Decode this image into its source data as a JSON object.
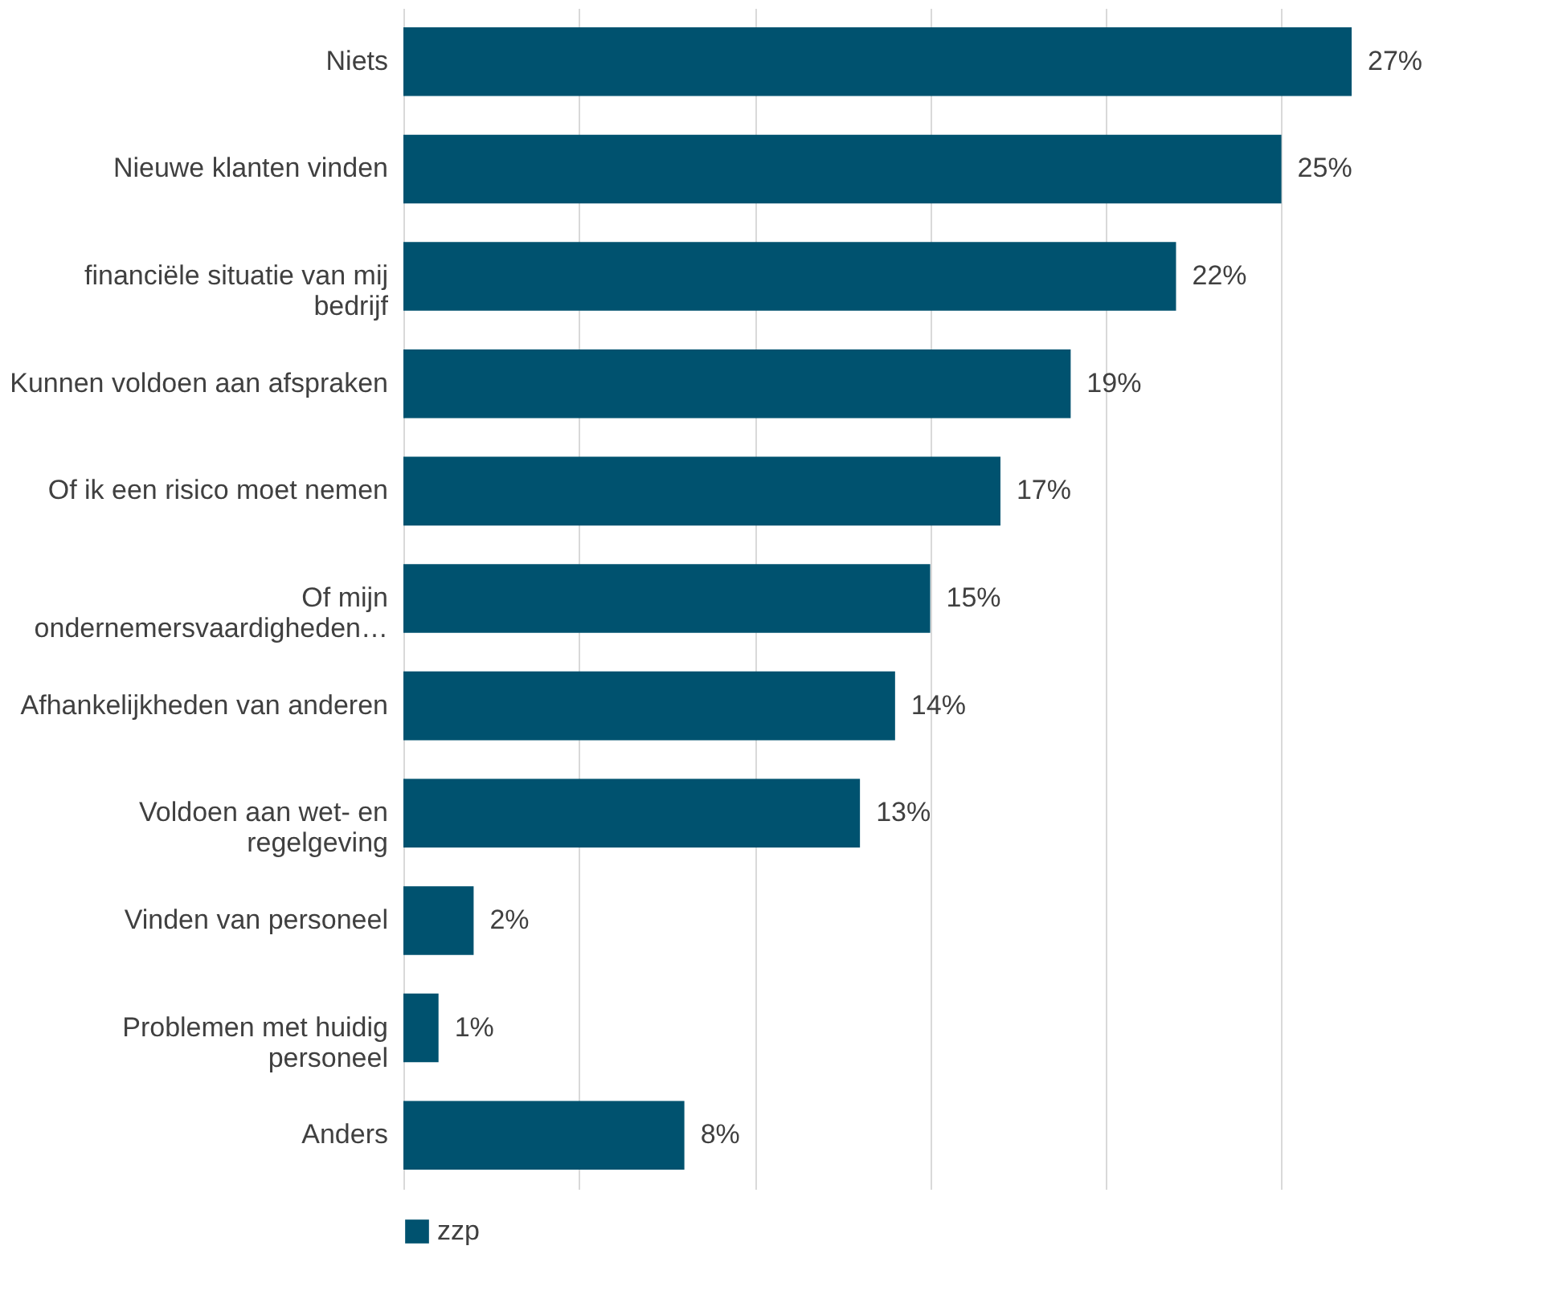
{
  "chart_data": {
    "type": "bar",
    "orientation": "horizontal",
    "categories": [
      "Niets",
      "Nieuwe klanten vinden",
      "financiële situatie van mij bedrijf",
      "Kunnen voldoen aan afspraken",
      "Of ik een risico moet nemen",
      "Of mijn ondernemersvaardigheden…",
      "Afhankelijkheden van anderen",
      "Voldoen aan wet- en regelgeving",
      "Vinden van personeel",
      "Problemen met huidig personeel",
      "Anders"
    ],
    "series": [
      {
        "name": "zzp",
        "color": "#00526f",
        "values": [
          27,
          25,
          22,
          19,
          17,
          15,
          14,
          13,
          2,
          1,
          8
        ],
        "value_labels": [
          "27%",
          "25%",
          "22%",
          "19%",
          "17%",
          "15%",
          "14%",
          "13%",
          "2%",
          "1%",
          "8%"
        ]
      }
    ],
    "tick_labels": "y",
    "grid": "x",
    "legend": "bottom"
  }
}
